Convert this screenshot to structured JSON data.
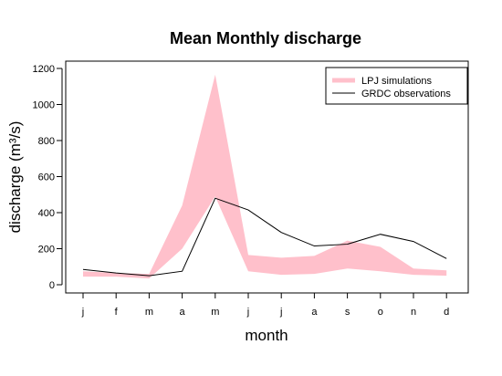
{
  "chart_data": {
    "type": "area",
    "title": "Mean Monthly discharge",
    "xlabel": "month",
    "ylabel": "discharge (m³/s)",
    "categories": [
      "j",
      "f",
      "m",
      "a",
      "m",
      "j",
      "j",
      "a",
      "s",
      "o",
      "n",
      "d"
    ],
    "ylim": [
      0,
      1200
    ],
    "yticks": [
      0,
      200,
      400,
      600,
      800,
      1000,
      1200
    ],
    "series": [
      {
        "name": "LPJ simulations",
        "kind": "band",
        "color": "#ffc0cb",
        "lower": [
          45,
          45,
          35,
          200,
          490,
          75,
          55,
          60,
          90,
          75,
          55,
          50
        ],
        "upper": [
          75,
          65,
          60,
          440,
          1165,
          165,
          150,
          160,
          245,
          210,
          90,
          80
        ]
      },
      {
        "name": "GRDC observations",
        "kind": "line",
        "color": "#000000",
        "values": [
          85,
          65,
          50,
          75,
          480,
          415,
          290,
          215,
          225,
          280,
          240,
          145
        ]
      }
    ],
    "legend_position": "top-right",
    "grid": false
  }
}
